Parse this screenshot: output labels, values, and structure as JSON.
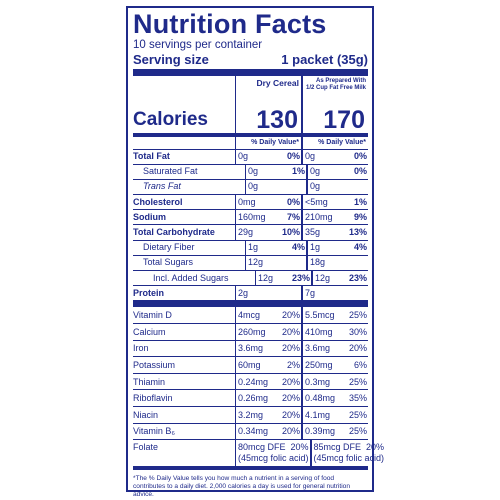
{
  "label": {
    "title": "Nutrition Facts",
    "servings": "10 servings per container",
    "serving_size_label": "Serving size",
    "serving_size_value": "1 packet (35g)",
    "col1_header": "Dry Cereal",
    "col2_header_line1": "As Prepared With",
    "col2_header_line2": "1/2 Cup Fat Free Milk",
    "calories_label": "Calories",
    "calories_col1": "130",
    "calories_col2": "170",
    "dv_header": "% Daily Value*",
    "nutrients": [
      {
        "name": "Total Fat",
        "a1": "0g",
        "p1": "0%",
        "a2": "0g",
        "p2": "0%"
      },
      {
        "name": "Saturated Fat",
        "a1": "0g",
        "p1": "1%",
        "a2": "0g",
        "p2": "0%"
      },
      {
        "name": "Trans Fat",
        "a1": "0g",
        "p1": "",
        "a2": "0g",
        "p2": ""
      },
      {
        "name": "Cholesterol",
        "a1": "0mg",
        "p1": "0%",
        "a2": "<5mg",
        "p2": "1%"
      },
      {
        "name": "Sodium",
        "a1": "160mg",
        "p1": "7%",
        "a2": "210mg",
        "p2": "9%"
      },
      {
        "name": "Total Carbohydrate",
        "a1": "29g",
        "p1": "10%",
        "a2": "35g",
        "p2": "13%"
      },
      {
        "name": "Dietary Fiber",
        "a1": "1g",
        "p1": "4%",
        "a2": "1g",
        "p2": "4%"
      },
      {
        "name": "Total Sugars",
        "a1": "12g",
        "p1": "",
        "a2": "18g",
        "p2": ""
      },
      {
        "name": "Incl. Added Sugars",
        "a1": "12g",
        "p1": "23%",
        "a2": "12g",
        "p2": "23%"
      },
      {
        "name": "Protein",
        "a1": "2g",
        "p1": "",
        "a2": "7g",
        "p2": ""
      }
    ],
    "vitamins": [
      {
        "name": "Vitamin D",
        "a1": "4mcg",
        "p1": "20%",
        "a2": "5.5mcg",
        "p2": "25%"
      },
      {
        "name": "Calcium",
        "a1": "260mg",
        "p1": "20%",
        "a2": "410mg",
        "p2": "30%"
      },
      {
        "name": "Iron",
        "a1": "3.6mg",
        "p1": "20%",
        "a2": "3.6mg",
        "p2": "20%"
      },
      {
        "name": "Potassium",
        "a1": "60mg",
        "p1": "2%",
        "a2": "250mg",
        "p2": "6%"
      },
      {
        "name": "Thiamin",
        "a1": "0.24mg",
        "p1": "20%",
        "a2": "0.3mg",
        "p2": "25%"
      },
      {
        "name": "Riboflavin",
        "a1": "0.26mg",
        "p1": "20%",
        "a2": "0.48mg",
        "p2": "35%"
      },
      {
        "name": "Niacin",
        "a1": "3.2mg",
        "p1": "20%",
        "a2": "4.1mg",
        "p2": "25%"
      },
      {
        "name": "Vitamin B₆",
        "a1": "0.34mg",
        "p1": "20%",
        "a2": "0.39mg",
        "p2": "25%"
      }
    ],
    "folate": {
      "name": "Folate",
      "a1": "80mcg DFE",
      "p1": "20%",
      "a1_sub": "(45mcg folic acid)",
      "a2": "85mcg DFE",
      "p2": "20%",
      "a2_sub": "(45mcg folic acid)"
    },
    "footnote": "*The % Daily Value tells you how much a nutrient in a serving of food contributes to a daily diet. 2,000 calories a day is used for general nutrition advice."
  },
  "colors": {
    "ink": "#1f2a8a",
    "background": "#ffffff"
  }
}
